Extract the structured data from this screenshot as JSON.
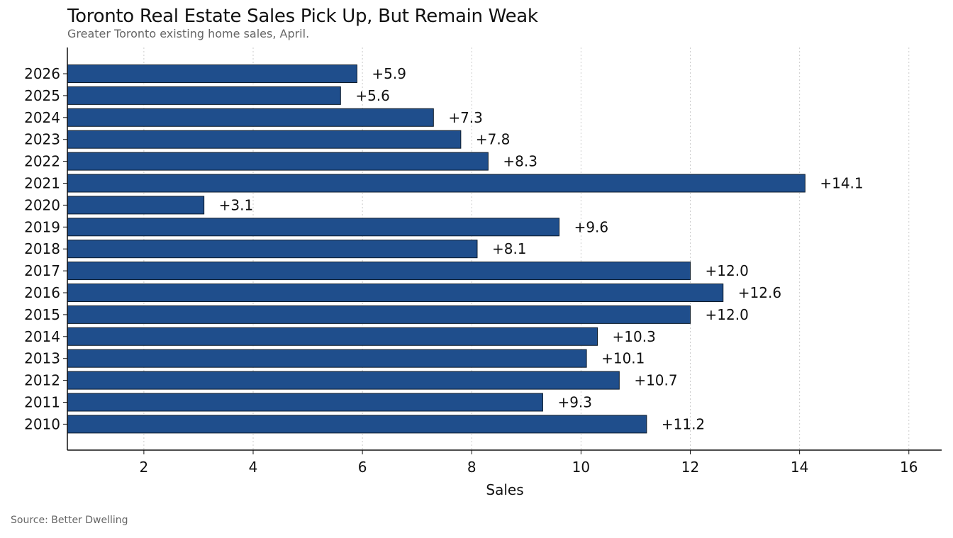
{
  "header": {
    "title": "Toronto Real Estate Sales Pick Up, But Remain Weak",
    "subtitle": "Greater Toronto existing home sales, April."
  },
  "footer": {
    "source": "Source: Better Dwelling"
  },
  "colors": {
    "bar": "#1f4e8c",
    "bar_edge": "#0d1b2a",
    "grid": "#cccccc",
    "axis": "#111111"
  },
  "chart_data": {
    "type": "bar",
    "orientation": "horizontal",
    "title": "Toronto Real Estate Sales Pick Up, But Remain Weak",
    "subtitle": "Greater Toronto existing home sales, April.",
    "xlabel": "Sales",
    "ylabel": "",
    "xlim": [
      0.6,
      16.6
    ],
    "xticks": [
      2,
      4,
      6,
      8,
      10,
      12,
      14,
      16
    ],
    "grid": "vertical dotted",
    "categories": [
      "2026",
      "2025",
      "2024",
      "2023",
      "2022",
      "2021",
      "2020",
      "2019",
      "2018",
      "2017",
      "2016",
      "2015",
      "2014",
      "2013",
      "2012",
      "2011",
      "2010"
    ],
    "values": [
      5.9,
      5.6,
      7.3,
      7.8,
      8.3,
      14.1,
      3.1,
      9.6,
      8.1,
      12.0,
      12.6,
      12.0,
      10.3,
      10.1,
      10.7,
      9.3,
      11.2
    ],
    "data_labels": [
      "+5.9",
      "+5.6",
      "+7.3",
      "+7.8",
      "+8.3",
      "+14.1",
      "+3.1",
      "+9.6",
      "+8.1",
      "+12.0",
      "+12.6",
      "+12.0",
      "+10.3",
      "+10.1",
      "+10.7",
      "+9.3",
      "+11.2"
    ],
    "source": "Source: Better Dwelling"
  }
}
